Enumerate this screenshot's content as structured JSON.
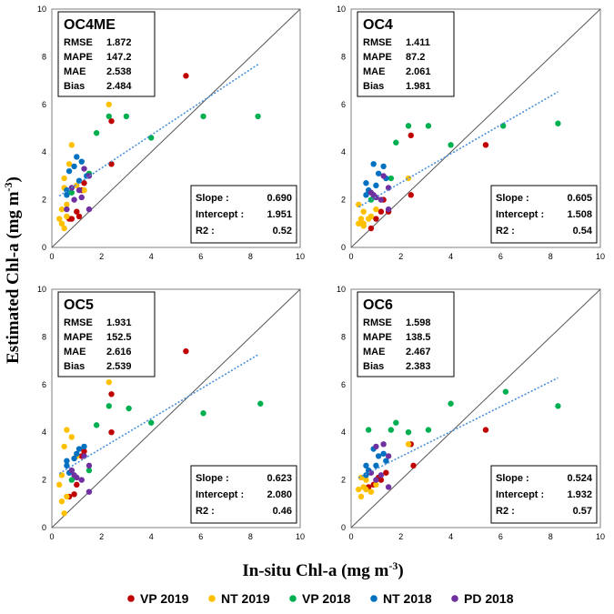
{
  "figure": {
    "xlabel": "In-situ Chl-a (mg m",
    "xlabel_sup": "-3",
    "xlabel_end": ")",
    "ylabel": "Estimated Chl-a (mg m",
    "ylabel_sup": "-3",
    "ylabel_end": ")"
  },
  "legend": [
    {
      "name": "VP 2019",
      "color": "#c00000"
    },
    {
      "name": "NT 2019",
      "color": "#ffc000"
    },
    {
      "name": "VP 2018",
      "color": "#00b050"
    },
    {
      "name": "NT 2018",
      "color": "#0070c0"
    },
    {
      "name": "PD 2018",
      "color": "#7030a0"
    }
  ],
  "chart_data": [
    {
      "type": "scatter",
      "title": "OC4ME",
      "stats": [
        {
          "label": "RMSE",
          "value": "1.872"
        },
        {
          "label": "MAPE",
          "value": "147.2"
        },
        {
          "label": "MAE",
          "value": "2.538"
        },
        {
          "label": "Bias",
          "value": "2.484"
        }
      ],
      "fit": [
        {
          "label": "Slope",
          "value": "0.690"
        },
        {
          "label": "Intercept",
          "value": "1.951"
        },
        {
          "label": "R2",
          "value": "0.52"
        }
      ],
      "fit_line": {
        "slope": 0.69,
        "intercept": 1.951,
        "x_range": [
          0.3,
          8.3
        ]
      },
      "xlim": [
        0,
        10
      ],
      "ylim": [
        0,
        10
      ],
      "xticks": [
        "0",
        "2",
        "4",
        "6",
        "8",
        "10"
      ],
      "yticks": [
        "0",
        "2",
        "4",
        "6",
        "8",
        "10"
      ],
      "series": [
        {
          "name": "VP 2019",
          "points": [
            [
              0.7,
              1.2
            ],
            [
              0.8,
              1.2
            ],
            [
              1.0,
              1.5
            ],
            [
              1.1,
              1.3
            ],
            [
              1.2,
              2.4
            ],
            [
              1.3,
              2.7
            ],
            [
              2.4,
              3.5
            ],
            [
              2.4,
              5.3
            ],
            [
              5.4,
              7.2
            ]
          ]
        },
        {
          "name": "NT 2019",
          "points": [
            [
              0.3,
              1.2
            ],
            [
              0.4,
              1.0
            ],
            [
              0.5,
              0.8
            ],
            [
              0.4,
              1.6
            ],
            [
              0.6,
              1.3
            ],
            [
              0.5,
              2.5
            ],
            [
              0.5,
              2.9
            ],
            [
              0.7,
              3.5
            ],
            [
              0.8,
              4.3
            ],
            [
              1.0,
              2.6
            ],
            [
              2.3,
              6.0
            ],
            [
              0.6,
              1.8
            ],
            [
              1.3,
              2.4
            ]
          ]
        },
        {
          "name": "VP 2018",
          "points": [
            [
              0.8,
              2.3
            ],
            [
              1.5,
              3.1
            ],
            [
              1.8,
              4.8
            ],
            [
              2.3,
              5.5
            ],
            [
              3.0,
              5.5
            ],
            [
              4.0,
              4.6
            ],
            [
              6.1,
              5.5
            ],
            [
              8.3,
              5.5
            ]
          ]
        },
        {
          "name": "NT 2018",
          "points": [
            [
              0.6,
              2.2
            ],
            [
              0.7,
              3.2
            ],
            [
              0.9,
              3.4
            ],
            [
              1.0,
              3.8
            ],
            [
              1.2,
              3.6
            ],
            [
              0.6,
              2.4
            ],
            [
              1.4,
              3.0
            ],
            [
              1.1,
              2.8
            ]
          ]
        },
        {
          "name": "PD 2018",
          "points": [
            [
              0.8,
              2.5
            ],
            [
              1.2,
              2.1
            ],
            [
              1.3,
              3.3
            ],
            [
              1.5,
              3.0
            ],
            [
              1.5,
              1.6
            ],
            [
              1.1,
              2.4
            ],
            [
              0.9,
              2.0
            ],
            [
              0.6,
              1.6
            ]
          ]
        }
      ]
    },
    {
      "type": "scatter",
      "title": "OC4",
      "stats": [
        {
          "label": "RMSE",
          "value": "1.411"
        },
        {
          "label": "MAPE",
          "value": "87.2"
        },
        {
          "label": "MAE",
          "value": "2.061"
        },
        {
          "label": "Bias",
          "value": "1.981"
        }
      ],
      "fit": [
        {
          "label": "Slope",
          "value": "0.605"
        },
        {
          "label": "Intercept",
          "value": "1.508"
        },
        {
          "label": "R2",
          "value": "0.54"
        }
      ],
      "fit_line": {
        "slope": 0.605,
        "intercept": 1.508,
        "x_range": [
          0.3,
          8.3
        ]
      },
      "xlim": [
        0,
        10
      ],
      "ylim": [
        0,
        10
      ],
      "xticks": [
        "0",
        "2",
        "4",
        "6",
        "8",
        "10"
      ],
      "yticks": [
        "0",
        "2",
        "4",
        "6",
        "8",
        "10"
      ],
      "series": [
        {
          "name": "VP 2019",
          "points": [
            [
              0.8,
              0.8
            ],
            [
              1.0,
              1.2
            ],
            [
              1.2,
              1.5
            ],
            [
              1.3,
              2.0
            ],
            [
              1.5,
              1.5
            ],
            [
              2.4,
              2.2
            ],
            [
              2.4,
              4.7
            ],
            [
              5.4,
              4.3
            ]
          ]
        },
        {
          "name": "NT 2019",
          "points": [
            [
              0.3,
              1.0
            ],
            [
              0.4,
              1.2
            ],
            [
              0.5,
              0.9
            ],
            [
              0.5,
              1.5
            ],
            [
              0.7,
              1.2
            ],
            [
              0.3,
              1.8
            ],
            [
              0.5,
              1.0
            ],
            [
              1.0,
              1.6
            ],
            [
              2.3,
              2.9
            ],
            [
              0.8,
              1.3
            ]
          ]
        },
        {
          "name": "VP 2018",
          "points": [
            [
              0.8,
              2.0
            ],
            [
              1.6,
              2.9
            ],
            [
              1.8,
              4.4
            ],
            [
              2.3,
              5.1
            ],
            [
              3.1,
              5.1
            ],
            [
              4.0,
              4.3
            ],
            [
              6.1,
              5.1
            ],
            [
              8.3,
              5.2
            ]
          ]
        },
        {
          "name": "NT 2018",
          "points": [
            [
              0.6,
              2.7
            ],
            [
              0.7,
              2.4
            ],
            [
              0.9,
              3.5
            ],
            [
              1.1,
              3.1
            ],
            [
              1.3,
              3.4
            ],
            [
              0.6,
              2.2
            ],
            [
              1.4,
              2.9
            ],
            [
              1.0,
              2.6
            ]
          ]
        },
        {
          "name": "PD 2018",
          "points": [
            [
              0.8,
              2.3
            ],
            [
              1.2,
              2.0
            ],
            [
              1.3,
              3.0
            ],
            [
              1.5,
              2.5
            ],
            [
              1.5,
              1.6
            ],
            [
              1.0,
              2.1
            ],
            [
              0.9,
              2.2
            ]
          ]
        }
      ]
    },
    {
      "type": "scatter",
      "title": "OC5",
      "stats": [
        {
          "label": "RMSE",
          "value": "1.931"
        },
        {
          "label": "MAPE",
          "value": "152.5"
        },
        {
          "label": "MAE",
          "value": "2.616"
        },
        {
          "label": "Bias",
          "value": "2.539"
        }
      ],
      "fit": [
        {
          "label": "Slope",
          "value": "0.623"
        },
        {
          "label": "Intercept",
          "value": "2.080"
        },
        {
          "label": "R2",
          "value": "0.46"
        }
      ],
      "fit_line": {
        "slope": 0.623,
        "intercept": 2.08,
        "x_range": [
          0.3,
          8.3
        ]
      },
      "xlim": [
        0,
        10
      ],
      "ylim": [
        0,
        10
      ],
      "xticks": [
        "0",
        "2",
        "4",
        "6",
        "8",
        "10"
      ],
      "yticks": [
        "0",
        "2",
        "4",
        "6",
        "8",
        "10"
      ],
      "series": [
        {
          "name": "VP 2019",
          "points": [
            [
              0.7,
              1.3
            ],
            [
              0.9,
              1.4
            ],
            [
              1.0,
              1.8
            ],
            [
              1.2,
              3.0
            ],
            [
              1.3,
              3.2
            ],
            [
              2.4,
              4.0
            ],
            [
              2.4,
              5.6
            ],
            [
              5.4,
              7.4
            ]
          ]
        },
        {
          "name": "NT 2019",
          "points": [
            [
              0.3,
              1.8
            ],
            [
              0.4,
              1.1
            ],
            [
              0.5,
              0.6
            ],
            [
              0.4,
              2.2
            ],
            [
              0.5,
              3.4
            ],
            [
              0.6,
              4.1
            ],
            [
              0.8,
              3.8
            ],
            [
              1.0,
              3.0
            ],
            [
              2.3,
              6.1
            ],
            [
              0.6,
              1.3
            ]
          ]
        },
        {
          "name": "VP 2018",
          "points": [
            [
              0.8,
              2.0
            ],
            [
              1.5,
              2.4
            ],
            [
              1.8,
              4.3
            ],
            [
              2.3,
              5.1
            ],
            [
              3.1,
              5.0
            ],
            [
              4.0,
              4.4
            ],
            [
              6.1,
              4.8
            ],
            [
              8.4,
              5.2
            ]
          ]
        },
        {
          "name": "NT 2018",
          "points": [
            [
              0.6,
              2.6
            ],
            [
              0.7,
              2.3
            ],
            [
              0.9,
              2.9
            ],
            [
              1.1,
              3.3
            ],
            [
              1.3,
              3.4
            ],
            [
              0.6,
              2.8
            ],
            [
              1.0,
              3.1
            ]
          ]
        },
        {
          "name": "PD 2018",
          "points": [
            [
              0.8,
              2.4
            ],
            [
              1.2,
              2.0
            ],
            [
              1.3,
              3.0
            ],
            [
              1.5,
              2.6
            ],
            [
              1.5,
              1.5
            ],
            [
              1.0,
              2.1
            ],
            [
              0.9,
              2.2
            ]
          ]
        }
      ]
    },
    {
      "type": "scatter",
      "title": "OC6",
      "stats": [
        {
          "label": "RMSE",
          "value": "1.598"
        },
        {
          "label": "MAPE",
          "value": "138.5"
        },
        {
          "label": "MAE",
          "value": "2.467"
        },
        {
          "label": "Bias",
          "value": "2.383"
        }
      ],
      "fit": [
        {
          "label": "Slope",
          "value": "0.524"
        },
        {
          "label": "Intercept",
          "value": "1.932"
        },
        {
          "label": "R2",
          "value": "0.57"
        }
      ],
      "fit_line": {
        "slope": 0.524,
        "intercept": 1.932,
        "x_range": [
          0.3,
          8.3
        ]
      },
      "xlim": [
        0,
        10
      ],
      "ylim": [
        0,
        10
      ],
      "xticks": [
        "0",
        "2",
        "4",
        "6",
        "8",
        "10"
      ],
      "yticks": [
        "0",
        "2",
        "4",
        "6",
        "8",
        "10"
      ],
      "series": [
        {
          "name": "VP 2019",
          "points": [
            [
              0.7,
              1.7
            ],
            [
              0.9,
              1.8
            ],
            [
              1.1,
              2.1
            ],
            [
              1.2,
              2.0
            ],
            [
              1.4,
              2.3
            ],
            [
              2.5,
              2.6
            ],
            [
              2.4,
              3.5
            ],
            [
              5.4,
              4.1
            ]
          ]
        },
        {
          "name": "NT 2019",
          "points": [
            [
              0.3,
              1.6
            ],
            [
              0.4,
              1.3
            ],
            [
              0.5,
              1.7
            ],
            [
              0.4,
              2.1
            ],
            [
              0.6,
              1.6
            ],
            [
              0.8,
              1.5
            ],
            [
              1.0,
              1.8
            ],
            [
              2.3,
              3.5
            ],
            [
              0.6,
              2.0
            ]
          ]
        },
        {
          "name": "VP 2018",
          "points": [
            [
              0.7,
              4.1
            ],
            [
              1.6,
              4.1
            ],
            [
              1.8,
              4.4
            ],
            [
              2.3,
              4.0
            ],
            [
              3.1,
              4.1
            ],
            [
              4.0,
              5.2
            ],
            [
              6.2,
              5.7
            ],
            [
              8.3,
              5.1
            ]
          ]
        },
        {
          "name": "NT 2018",
          "points": [
            [
              0.6,
              2.6
            ],
            [
              0.7,
              2.4
            ],
            [
              0.9,
              3.3
            ],
            [
              1.1,
              3.0
            ],
            [
              1.3,
              3.1
            ],
            [
              0.6,
              2.2
            ],
            [
              1.4,
              2.8
            ],
            [
              1.0,
              2.6
            ]
          ]
        },
        {
          "name": "PD 2018",
          "points": [
            [
              0.8,
              2.3
            ],
            [
              1.0,
              3.4
            ],
            [
              1.2,
              2.2
            ],
            [
              1.3,
              3.5
            ],
            [
              1.5,
              3.0
            ],
            [
              1.5,
              1.7
            ],
            [
              1.0,
              2.0
            ]
          ]
        }
      ]
    }
  ]
}
